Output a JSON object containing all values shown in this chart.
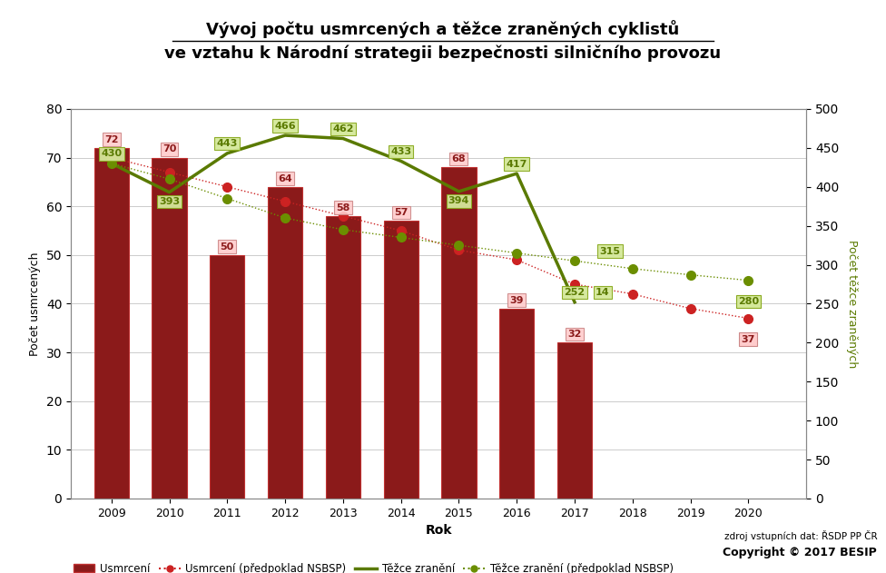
{
  "title_line1": "Vývoj počtu usmrcených a těžce zraněných cyklistů",
  "title_line2": "ve vztahu k Národní strategii bezpečnosti silničního provozu",
  "xlabel": "Rok",
  "ylabel_left": "Počet usmrcených",
  "ylabel_right": "Počet těžce zraněných",
  "years_bar": [
    2009,
    2010,
    2011,
    2012,
    2013,
    2014,
    2015,
    2016,
    2017
  ],
  "bar_values": [
    72,
    70,
    50,
    64,
    58,
    57,
    68,
    39,
    32
  ],
  "bar_color": "#8B1A1A",
  "bar_border_color": "#C03030",
  "years_solid_line": [
    2009,
    2010,
    2011,
    2012,
    2013,
    2014,
    2015,
    2016,
    2017
  ],
  "solid_line_values": [
    430,
    393,
    443,
    466,
    462,
    433,
    394,
    417,
    252
  ],
  "solid_line_color": "#5A7A00",
  "years_dotted_red": [
    2009,
    2010,
    2011,
    2012,
    2013,
    2014,
    2015,
    2016,
    2017,
    2018,
    2019,
    2020
  ],
  "dotted_red_values": [
    70,
    67,
    64,
    61,
    58,
    55,
    51,
    49,
    44,
    42,
    39,
    37
  ],
  "dotted_red_color": "#CC2222",
  "years_dotted_green": [
    2009,
    2010,
    2011,
    2012,
    2013,
    2014,
    2015,
    2016,
    2017,
    2018,
    2019,
    2020
  ],
  "dotted_green_values": [
    430,
    410,
    385,
    360,
    345,
    335,
    325,
    315,
    305,
    295,
    287,
    280
  ],
  "dotted_green_color": "#6B8E00",
  "all_years": [
    2009,
    2010,
    2011,
    2012,
    2013,
    2014,
    2015,
    2016,
    2017,
    2018,
    2019,
    2020
  ],
  "ylim_left": [
    0,
    80
  ],
  "ylim_right": [
    0,
    500
  ],
  "yticks_left": [
    0,
    10,
    20,
    30,
    40,
    50,
    60,
    70,
    80
  ],
  "yticks_right": [
    0,
    50,
    100,
    150,
    200,
    250,
    300,
    350,
    400,
    450,
    500
  ],
  "bg_color": "#FFFFFF",
  "grid_color": "#CCCCCC",
  "legend_usmrceni": "Usmrcení",
  "legend_usmrceni_pred": "Usmrcení (předpoklad NSBSP)",
  "legend_tezce": "Těžce zranění",
  "legend_tezce_pred": "Těžce zranění (předpoklad NSBSP)",
  "source_text": "zdroj vstupních dat: ŘSDP PP ČR",
  "copyright_text": "Copyright © 2017 BESIP"
}
